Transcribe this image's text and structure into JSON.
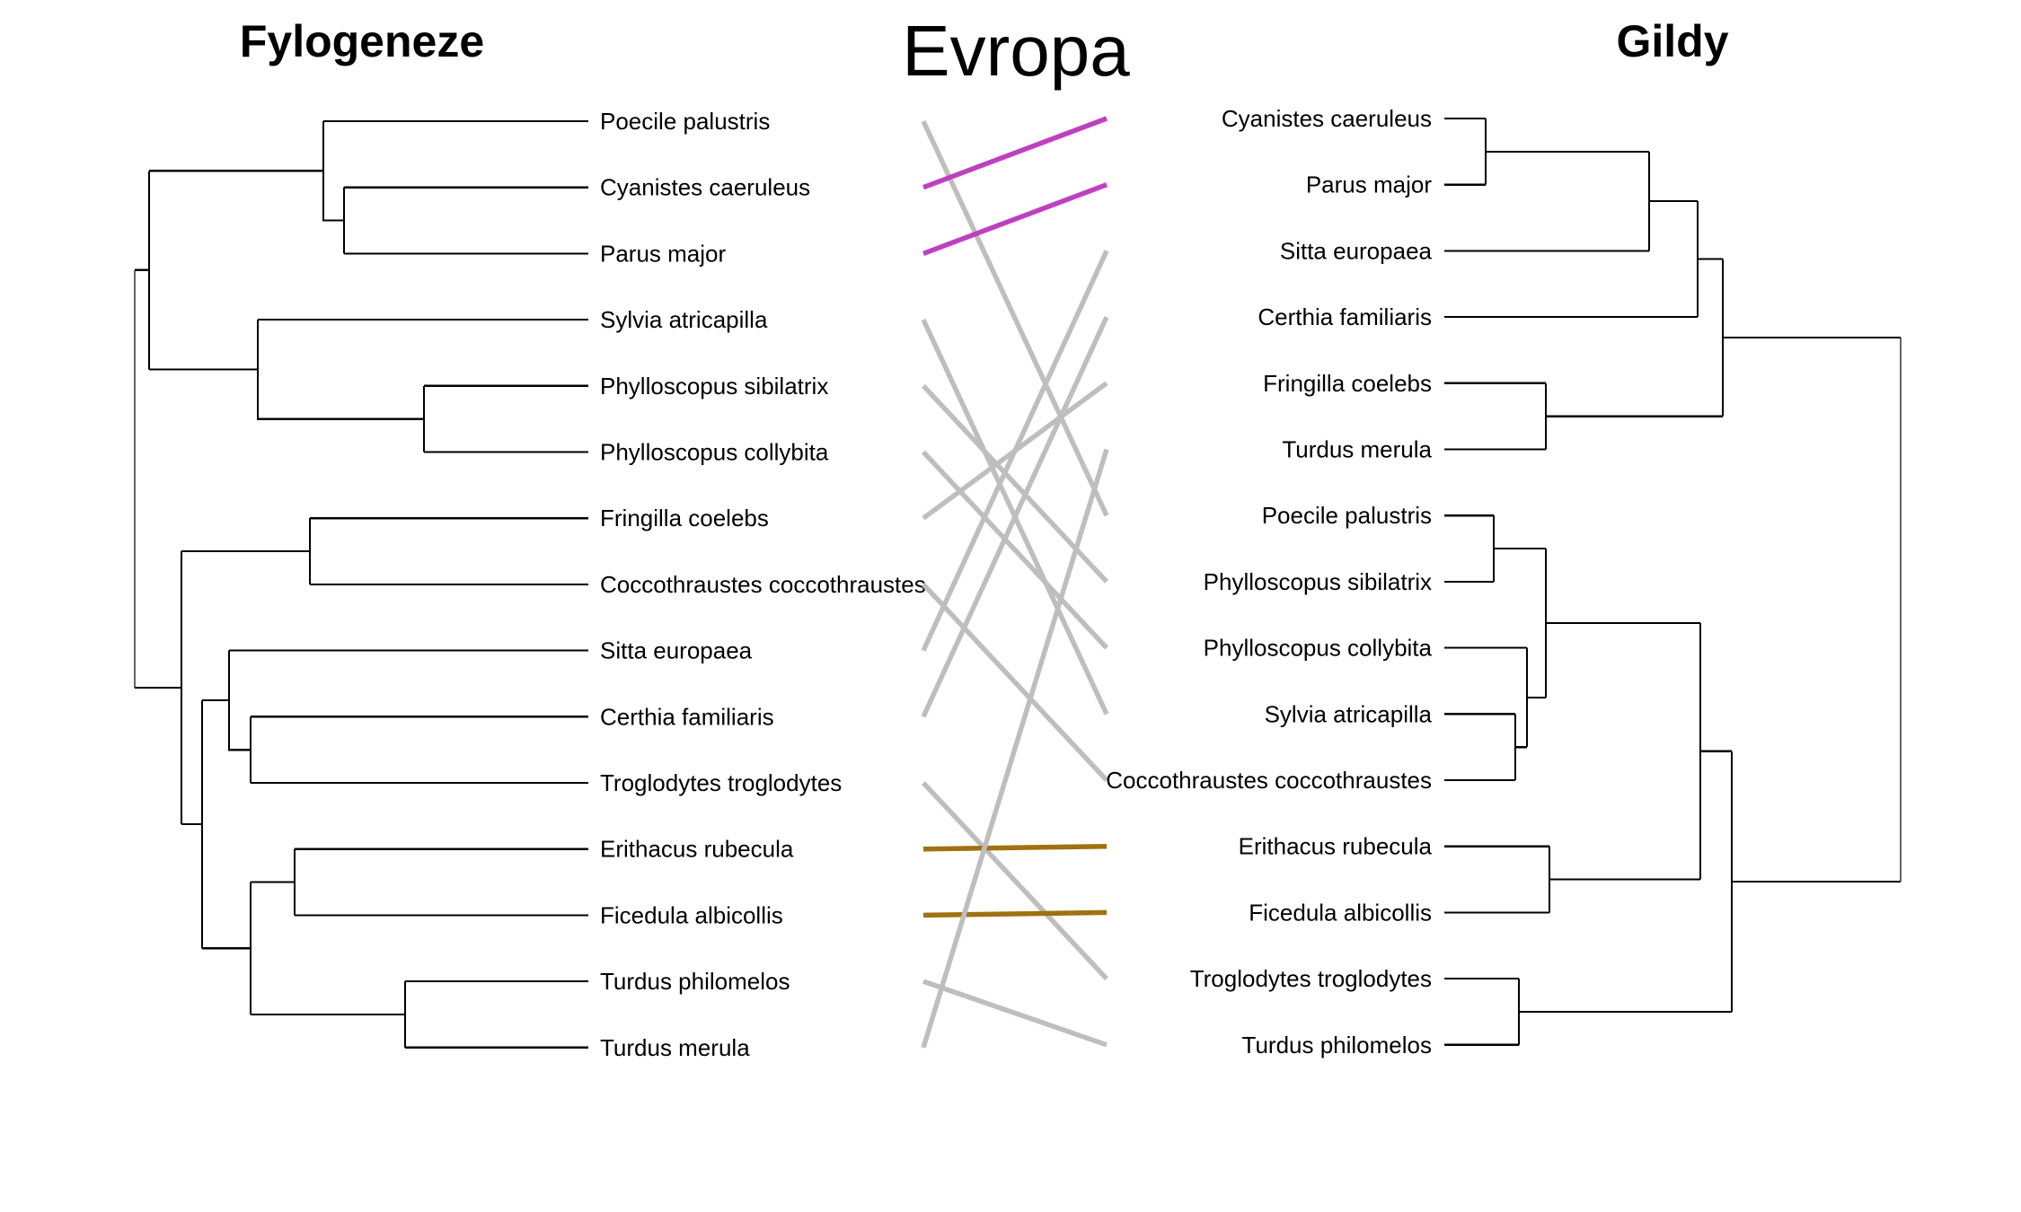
{
  "titles": {
    "left": "Fylogeneze",
    "center": "Evropa",
    "right": "Gildy"
  },
  "colors": {
    "crossing": "#bebebe",
    "group_magenta": "#bf40bf",
    "group_brown": "#a0720f",
    "branch": "#000000"
  },
  "left_tree": {
    "leaves": [
      "Poecile palustris",
      "Cyanistes caeruleus",
      "Parus major",
      "Sylvia atricapilla",
      "Phylloscopus sibilatrix",
      "Phylloscopus collybita",
      "Fringilla coelebs",
      "Coccothraustes coccothraustes",
      "Sitta europaea",
      "Certhia familiaris",
      "Troglodytes troglodytes",
      "Erithacus rubecula",
      "Ficedula albicollis",
      "Turdus philomelos",
      "Turdus merula"
    ]
  },
  "right_tree": {
    "leaves": [
      "Cyanistes caeruleus",
      "Parus major",
      "Sitta europaea",
      "Certhia familiaris",
      "Fringilla coelebs",
      "Turdus merula",
      "Poecile palustris",
      "Phylloscopus sibilatrix",
      "Phylloscopus collybita",
      "Sylvia atricapilla",
      "Coccothraustes coccothraustes",
      "Erithacus rubecula",
      "Ficedula albicollis",
      "Troglodytes troglodytes",
      "Turdus philomelos"
    ]
  },
  "connections": [
    {
      "from": "Poecile palustris",
      "left_index": 0,
      "right_index": 6,
      "color": "crossing"
    },
    {
      "from": "Cyanistes caeruleus",
      "left_index": 1,
      "right_index": 0,
      "color": "group_magenta"
    },
    {
      "from": "Parus major",
      "left_index": 2,
      "right_index": 1,
      "color": "group_magenta"
    },
    {
      "from": "Sylvia atricapilla",
      "left_index": 3,
      "right_index": 9,
      "color": "crossing"
    },
    {
      "from": "Phylloscopus sibilatrix",
      "left_index": 4,
      "right_index": 7,
      "color": "crossing"
    },
    {
      "from": "Phylloscopus collybita",
      "left_index": 5,
      "right_index": 8,
      "color": "crossing"
    },
    {
      "from": "Fringilla coelebs",
      "left_index": 6,
      "right_index": 4,
      "color": "crossing"
    },
    {
      "from": "Coccothraustes coccothraustes",
      "left_index": 7,
      "right_index": 10,
      "color": "crossing"
    },
    {
      "from": "Sitta europaea",
      "left_index": 8,
      "right_index": 2,
      "color": "crossing"
    },
    {
      "from": "Certhia familiaris",
      "left_index": 9,
      "right_index": 3,
      "color": "crossing"
    },
    {
      "from": "Troglodytes troglodytes",
      "left_index": 10,
      "right_index": 13,
      "color": "crossing"
    },
    {
      "from": "Erithacus rubecula",
      "left_index": 11,
      "right_index": 11,
      "color": "group_brown"
    },
    {
      "from": "Ficedula albicollis",
      "left_index": 12,
      "right_index": 12,
      "color": "group_brown"
    },
    {
      "from": "Turdus philomelos",
      "left_index": 13,
      "right_index": 14,
      "color": "crossing"
    },
    {
      "from": "Turdus merula",
      "left_index": 14,
      "right_index": 5,
      "color": "crossing"
    }
  ]
}
